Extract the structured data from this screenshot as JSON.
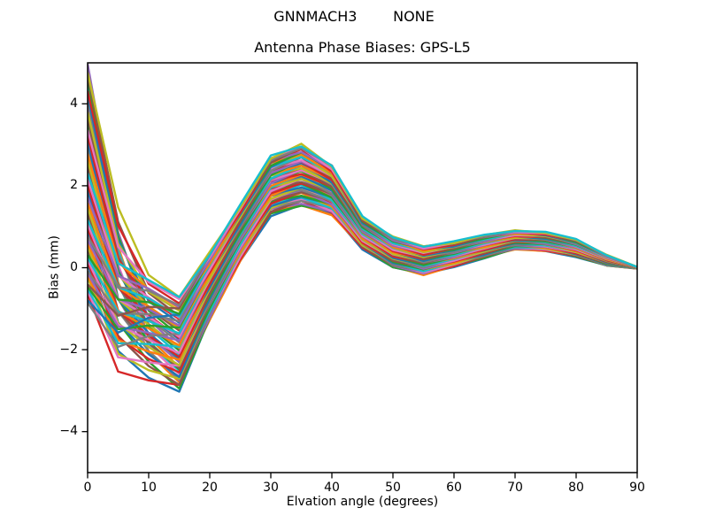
{
  "figure": {
    "background": "#ffffff",
    "frame_color": "#000000",
    "text_color": "#000000"
  },
  "chart_data": {
    "type": "line",
    "suptitle": "GNNMACH3        NONE",
    "title": "Antenna Phase Biases: GPS-L5",
    "xlabel": "Elvation angle (degrees)",
    "ylabel": "Bias (mm)",
    "grid": false,
    "legend": false,
    "xlim": [
      0,
      90
    ],
    "ylim": [
      -5,
      5
    ],
    "xticks": {
      "values": [
        0,
        10,
        20,
        30,
        40,
        50,
        60,
        70,
        80,
        90
      ],
      "labels": [
        "0",
        "10",
        "20",
        "30",
        "40",
        "50",
        "60",
        "70",
        "80",
        "90"
      ]
    },
    "yticks": {
      "values": [
        -4,
        -2,
        0,
        2,
        4
      ],
      "labels": [
        "−4",
        "−2",
        "0",
        "2",
        "4"
      ]
    },
    "x": [
      0,
      5,
      10,
      15,
      20,
      25,
      30,
      35,
      40,
      45,
      50,
      55,
      60,
      65,
      70,
      75,
      80,
      85,
      90
    ],
    "bundle": {
      "description": "Dense bundle of ~60 overlapping piecewise-linear phase-bias curves (one per antenna), damped oscillation: start -1..4.8 mm at 0 deg, minimum -3.0..-0.7 mm near 15 deg, peak 1.5..3.0 mm at 35 deg, dip -0.2..0.5 mm near 55 deg, small crest 0.45..0.95 mm near 70 deg, all converge to 0 mm at 90 deg",
      "mean": [
        1.9,
        -0.6,
        -1.4,
        -1.85,
        -0.45,
        0.85,
        2.0,
        2.25,
        1.9,
        0.85,
        0.38,
        0.18,
        0.33,
        0.52,
        0.68,
        0.64,
        0.48,
        0.18,
        0.0
      ],
      "half_spread": [
        2.9,
        2.15,
        1.38,
        1.15,
        0.82,
        0.68,
        0.7,
        0.75,
        0.6,
        0.38,
        0.37,
        0.35,
        0.3,
        0.28,
        0.23,
        0.23,
        0.21,
        0.13,
        0.02
      ],
      "start_morph": [
        1,
        0.72,
        0.3,
        0.05,
        0,
        0,
        0,
        0,
        0,
        0,
        0,
        0,
        0,
        0,
        0,
        0,
        0,
        0,
        0
      ],
      "line_count": 60,
      "line_width": 2.4,
      "colors": [
        "#1f77b4",
        "#ff7f0e",
        "#2ca02c",
        "#d62728",
        "#9467bd",
        "#8c564b",
        "#e377c2",
        "#7f7f7f",
        "#bcbd22",
        "#17becf"
      ],
      "wobble_amp": 0.07,
      "wobble_step": 1.9,
      "wobble_phase_step": 2.399,
      "perm_mult": 37,
      "perm_add": 11
    }
  }
}
